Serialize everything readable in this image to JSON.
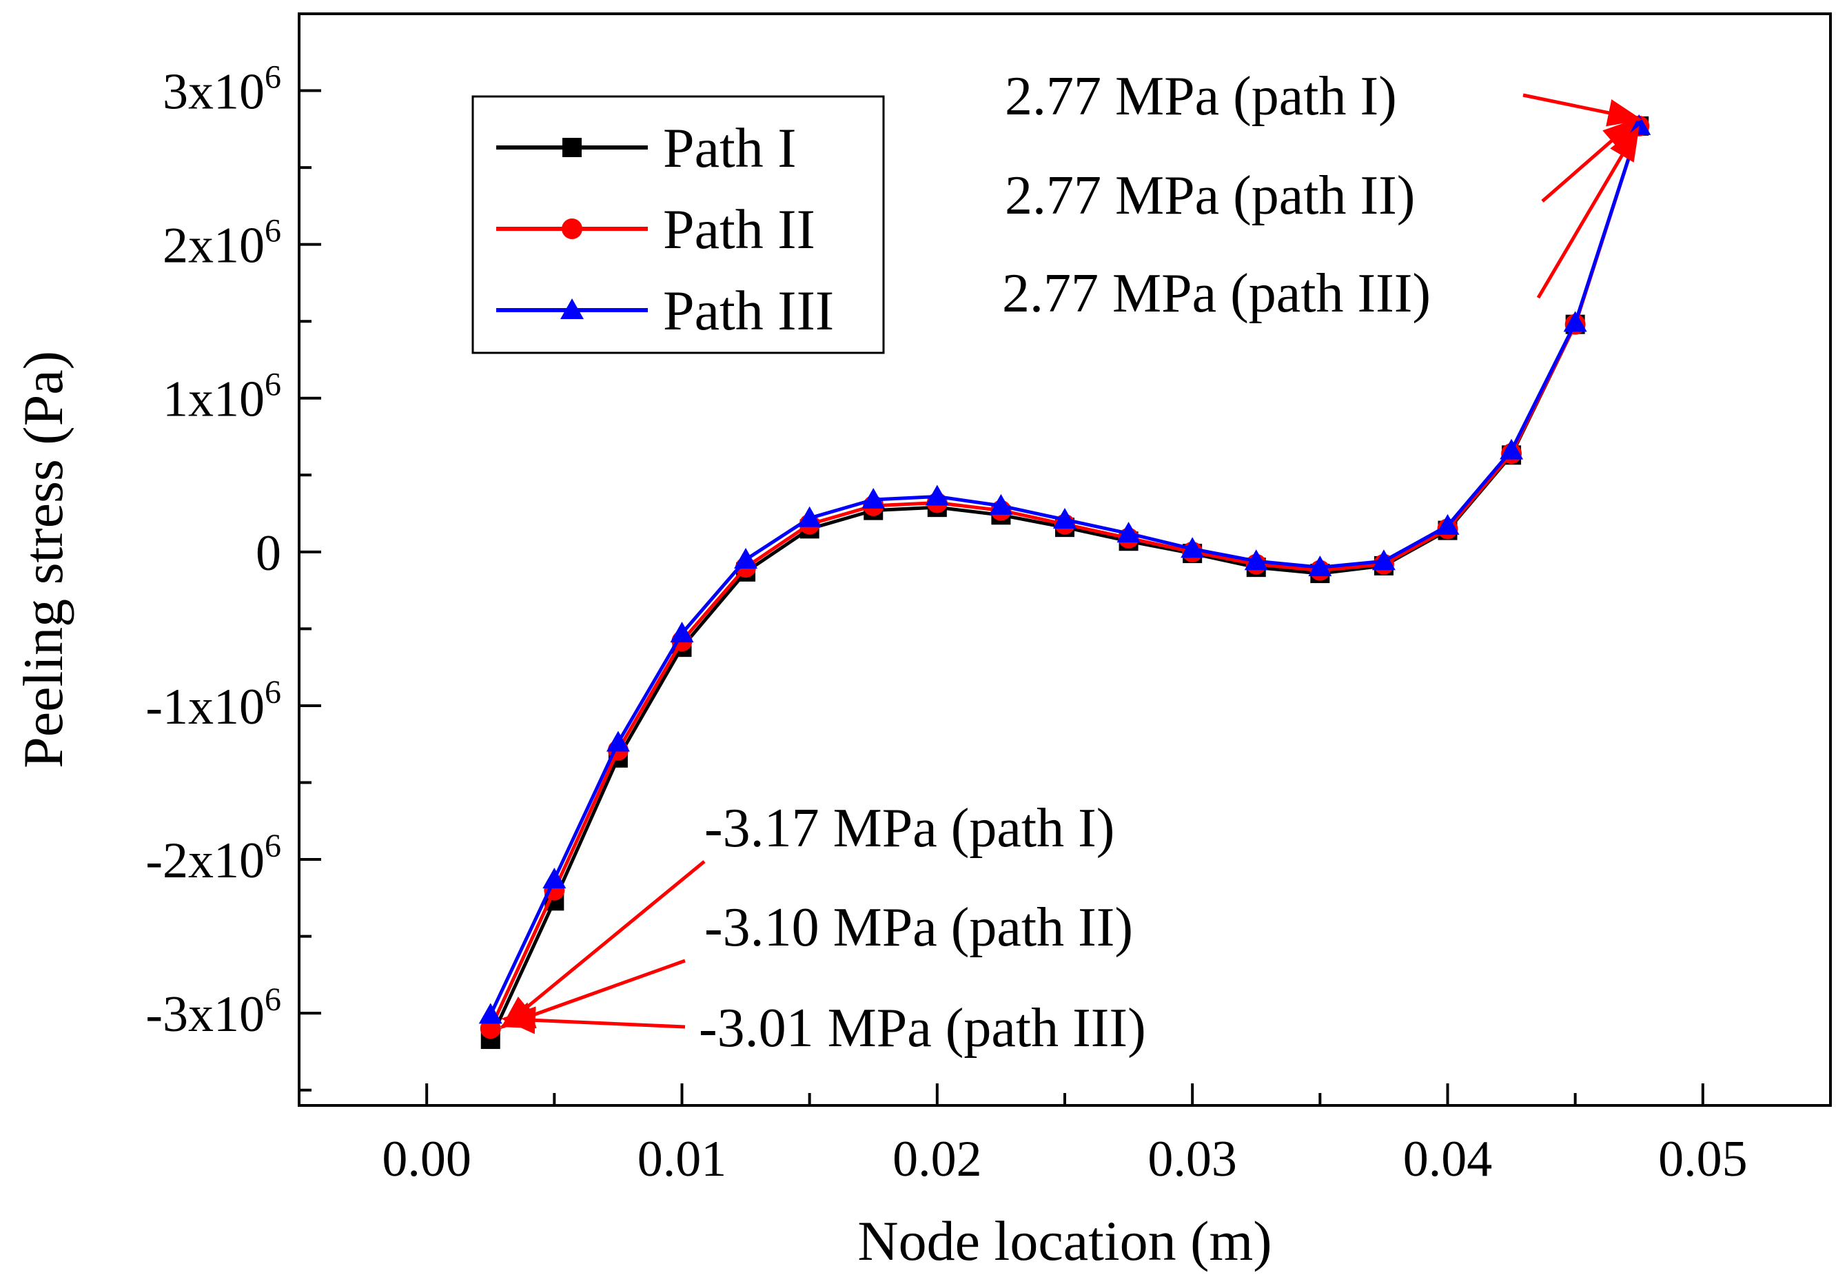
{
  "chart_data": {
    "type": "line",
    "xlabel": "Node location (m)",
    "ylabel": "Peeling stress (Pa)",
    "xlim": [
      -0.005,
      0.055
    ],
    "ylim": [
      -3600000,
      3500000
    ],
    "x_ticks": [
      0.0,
      0.01,
      0.02,
      0.03,
      0.04,
      0.05
    ],
    "x_tick_labels": [
      "0.00",
      "0.01",
      "0.02",
      "0.03",
      "0.04",
      "0.05"
    ],
    "y_ticks": [
      -3000000,
      -2000000,
      -1000000,
      0,
      1000000,
      2000000,
      3000000
    ],
    "y_tick_labels": [
      {
        "base": "-3x10",
        "exp": "6"
      },
      {
        "base": "-2x10",
        "exp": "6"
      },
      {
        "base": "-1x10",
        "exp": "6"
      },
      {
        "base": "0",
        "exp": ""
      },
      {
        "base": "1x10",
        "exp": "6"
      },
      {
        "base": "2x10",
        "exp": "6"
      },
      {
        "base": "3x10",
        "exp": "6"
      }
    ],
    "grid": false,
    "legend_position": "top-left",
    "x": [
      0.0025,
      0.005,
      0.0075,
      0.01,
      0.0125,
      0.015,
      0.0175,
      0.02,
      0.0225,
      0.025,
      0.0275,
      0.03,
      0.0325,
      0.035,
      0.0375,
      0.04,
      0.0425,
      0.045,
      0.0475
    ],
    "series": [
      {
        "name": "Path I",
        "color": "#000000",
        "marker": "square",
        "values": [
          -3170000,
          -2270000,
          -1340000,
          -620000,
          -130000,
          150000,
          270000,
          290000,
          240000,
          160000,
          70000,
          -10000,
          -100000,
          -140000,
          -90000,
          140000,
          630000,
          1480000,
          2770000
        ]
      },
      {
        "name": "Path II",
        "color": "#ff0000",
        "marker": "circle",
        "values": [
          -3100000,
          -2200000,
          -1290000,
          -580000,
          -100000,
          180000,
          300000,
          320000,
          270000,
          180000,
          90000,
          0,
          -80000,
          -120000,
          -80000,
          150000,
          640000,
          1480000,
          2770000
        ]
      },
      {
        "name": "Path III",
        "color": "#0000ff",
        "marker": "triangle",
        "values": [
          -3010000,
          -2130000,
          -1240000,
          -530000,
          -50000,
          220000,
          340000,
          360000,
          300000,
          210000,
          120000,
          20000,
          -60000,
          -100000,
          -60000,
          170000,
          660000,
          1490000,
          2770000
        ]
      }
    ],
    "annotations": [
      {
        "text": "2.77 MPa (path I)",
        "target_series": 0,
        "target_index": 18
      },
      {
        "text": "2.77 MPa (path II)",
        "target_series": 1,
        "target_index": 18
      },
      {
        "text": "2.77 MPa (path III)",
        "target_series": 2,
        "target_index": 18
      },
      {
        "text": "-3.17 MPa (path I)",
        "target_series": 0,
        "target_index": 0
      },
      {
        "text": "-3.10 MPa (path II)",
        "target_series": 1,
        "target_index": 0
      },
      {
        "text": "-3.01 MPa (path III)",
        "target_series": 2,
        "target_index": 0
      }
    ],
    "annotation_color": "#ff0000"
  }
}
